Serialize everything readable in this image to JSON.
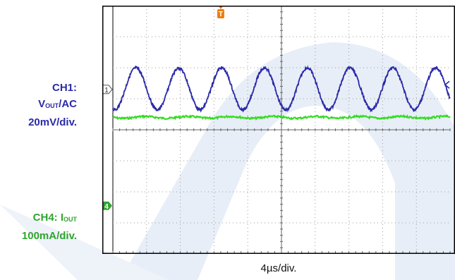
{
  "chart_data": {
    "type": "line",
    "instrument": "oscilloscope",
    "grid": true,
    "grid_divisions": {
      "horizontal": 10,
      "vertical": 8
    },
    "time_per_division_label": "4µs/div.",
    "series": [
      {
        "name": "CH1",
        "label_lines": [
          "CH1:",
          "V_OUT/AC",
          "20mV/div."
        ],
        "color": "#2b2aa8",
        "marker_label": "1",
        "ground_level_div_from_top": 2.7,
        "description_values": {
          "peak_to_peak_div": 1.35,
          "period_div": 1.27
        },
        "samples_div": {
          "time": [
            0.0,
            0.64,
            1.27,
            1.91,
            2.54,
            3.18,
            3.81,
            4.45,
            5.08,
            5.72,
            6.35,
            6.99,
            7.62,
            8.26,
            8.89,
            9.53,
            10.0
          ],
          "level": [
            2.1,
            3.35,
            2.0,
            3.35,
            2.0,
            3.35,
            2.0,
            3.35,
            2.0,
            3.35,
            2.0,
            3.35,
            2.0,
            3.35,
            2.0,
            3.35,
            2.55
          ]
        }
      },
      {
        "name": "CH4",
        "label_lines": [
          "CH4: I_OUT",
          "100mA/div."
        ],
        "color": "#33dd22",
        "marker_label": "4",
        "ground_level_div_from_top": 6.45,
        "samples_div": {
          "time": [
            0,
            10
          ],
          "level": [
            3.6,
            3.6
          ]
        }
      }
    ],
    "trigger_marker": {
      "label": "T",
      "color": "#f07c10",
      "time_div": 3.2
    }
  },
  "labels": {
    "ch1_line1": "CH1:",
    "ch1_v": "V",
    "ch1_sub": "OUT",
    "ch1_rest": "/AC",
    "ch1_line3": "20mV/div.",
    "ch4_prefix": "CH4: I",
    "ch4_sub": "OUT",
    "ch4_line2": "100mA/div.",
    "timebase": "4µs/div."
  },
  "colors": {
    "watermark": "#e6ecf6",
    "frame": "#000000",
    "grid_dots": "#9a9a9a"
  }
}
